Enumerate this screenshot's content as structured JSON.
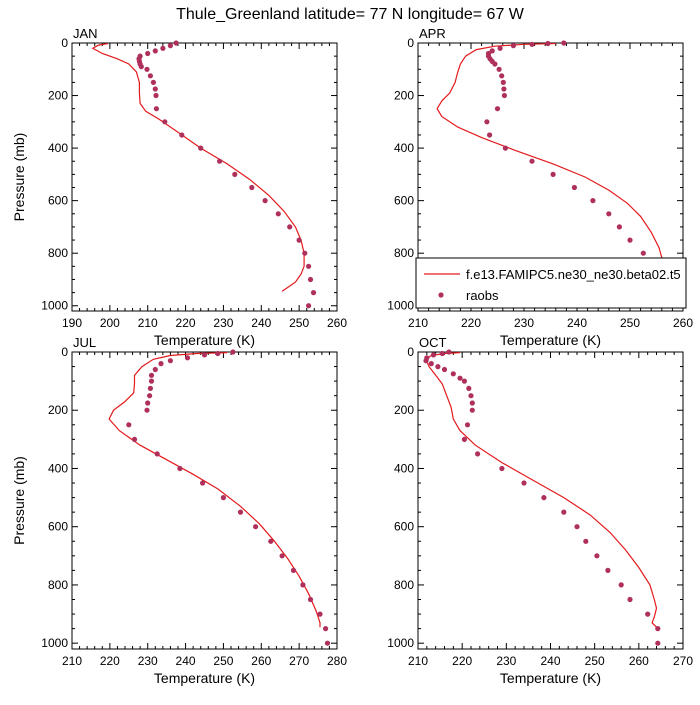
{
  "title": "Thule_Greenland  latitude= 77 N longitude= 67 W",
  "styles": {
    "model_color": "#e31a1c",
    "obs_color": "#b0305c"
  },
  "panels": [
    {
      "label": "JAN",
      "xlabel": "Temperature (K)",
      "ylabel": "Pressure (mb)",
      "xticks": [
        "190",
        "200",
        "210",
        "220",
        "230",
        "240",
        "250",
        "260"
      ],
      "yticks": [
        "0",
        "200",
        "400",
        "600",
        "800",
        "1000"
      ]
    },
    {
      "label": "APR",
      "xlabel": "Temperature (K)",
      "ylabel": "",
      "xticks": [
        "210",
        "220",
        "230",
        "240",
        "250",
        "260"
      ],
      "yticks": [
        "0",
        "200",
        "400",
        "600",
        "800",
        "1000"
      ],
      "legend": {
        "model": "f.e13.FAMIPC5.ne30_ne30.beta02.t5",
        "obs": "raobs"
      }
    },
    {
      "label": "JUL",
      "xlabel": "Temperature (K)",
      "ylabel": "Pressure (mb)",
      "xticks": [
        "210",
        "220",
        "230",
        "240",
        "250",
        "260",
        "270",
        "280"
      ],
      "yticks": [
        "0",
        "200",
        "400",
        "600",
        "800",
        "1000"
      ]
    },
    {
      "label": "OCT",
      "xlabel": "Temperature (K)",
      "ylabel": "",
      "xticks": [
        "210",
        "220",
        "230",
        "240",
        "250",
        "260",
        "270"
      ],
      "yticks": [
        "0",
        "200",
        "400",
        "600",
        "800",
        "1000"
      ]
    }
  ],
  "chart_data": [
    {
      "type": "line",
      "panel": "JAN",
      "xlim": [
        190,
        260
      ],
      "ylim": [
        1020,
        0
      ],
      "y_inverted": true,
      "series": [
        {
          "name": "f.e13.FAMIPC5.ne30_ne30.beta02.t5",
          "kind": "line",
          "points": [
            [
              199.5,
              2
            ],
            [
              197,
              8
            ],
            [
              195.5,
              20
            ],
            [
              198,
              40
            ],
            [
              202,
              60
            ],
            [
              205,
              80
            ],
            [
              207,
              110
            ],
            [
              207.8,
              150
            ],
            [
              207.8,
              190
            ],
            [
              208,
              230
            ],
            [
              209.5,
              260
            ],
            [
              213,
              290
            ],
            [
              218,
              340
            ],
            [
              224,
              400
            ],
            [
              231,
              460
            ],
            [
              237,
              520
            ],
            [
              242,
              580
            ],
            [
              246,
              640
            ],
            [
              249,
              700
            ],
            [
              250.5,
              750
            ],
            [
              251.3,
              800
            ],
            [
              251.3,
              850
            ],
            [
              250.5,
              880
            ],
            [
              249,
              910
            ],
            [
              247,
              930
            ],
            [
              245.5,
              945
            ]
          ]
        },
        {
          "name": "raobs",
          "kind": "scatter",
          "points": [
            [
              217.5,
              0
            ],
            [
              216,
              10
            ],
            [
              214,
              20
            ],
            [
              212,
              30
            ],
            [
              210,
              40
            ],
            [
              208,
              50
            ],
            [
              207.7,
              60
            ],
            [
              207.8,
              70
            ],
            [
              208,
              80
            ],
            [
              208.3,
              90
            ],
            [
              209.8,
              100
            ],
            [
              210.7,
              125
            ],
            [
              211.5,
              150
            ],
            [
              212,
              175
            ],
            [
              212.2,
              200
            ],
            [
              212.3,
              250
            ],
            [
              214.5,
              300
            ],
            [
              219,
              350
            ],
            [
              224,
              400
            ],
            [
              229,
              450
            ],
            [
              233,
              500
            ],
            [
              237.5,
              550
            ],
            [
              241,
              600
            ],
            [
              244.5,
              650
            ],
            [
              247.5,
              700
            ],
            [
              250,
              750
            ],
            [
              251.5,
              800
            ],
            [
              252.5,
              850
            ],
            [
              253,
              900
            ],
            [
              253.8,
              950
            ],
            [
              252.5,
              1000
            ]
          ]
        }
      ]
    },
    {
      "type": "line",
      "panel": "APR",
      "xlim": [
        210,
        260
      ],
      "ylim": [
        1020,
        0
      ],
      "y_inverted": true,
      "series": [
        {
          "name": "f.e13.FAMIPC5.ne30_ne30.beta02.t5",
          "kind": "line",
          "points": [
            [
              236,
              2
            ],
            [
              230,
              5
            ],
            [
              224.5,
              12
            ],
            [
              221,
              25
            ],
            [
              219,
              50
            ],
            [
              218,
              80
            ],
            [
              217.5,
              110
            ],
            [
              217,
              150
            ],
            [
              216,
              190
            ],
            [
              214.5,
              220
            ],
            [
              213.6,
              250
            ],
            [
              214.5,
              280
            ],
            [
              217.5,
              320
            ],
            [
              222,
              360
            ],
            [
              228.5,
              410
            ],
            [
              235.5,
              460
            ],
            [
              241.5,
              510
            ],
            [
              246,
              560
            ],
            [
              249.5,
              610
            ],
            [
              252,
              660
            ],
            [
              254,
              720
            ],
            [
              255.5,
              780
            ],
            [
              256.3,
              840
            ],
            [
              256,
              890
            ],
            [
              255.2,
              930
            ],
            [
              254.5,
              945
            ]
          ]
        },
        {
          "name": "raobs",
          "kind": "scatter",
          "points": [
            [
              237.5,
              0
            ],
            [
              234.5,
              2
            ],
            [
              231.5,
              5
            ],
            [
              228,
              10
            ],
            [
              225.5,
              20
            ],
            [
              224,
              30
            ],
            [
              223.3,
              40
            ],
            [
              223.3,
              50
            ],
            [
              223.6,
              60
            ],
            [
              224,
              70
            ],
            [
              224.5,
              80
            ],
            [
              225.3,
              100
            ],
            [
              225.8,
              125
            ],
            [
              226.1,
              150
            ],
            [
              226.2,
              175
            ],
            [
              226.3,
              200
            ],
            [
              225,
              250
            ],
            [
              223,
              300
            ],
            [
              223.5,
              350
            ],
            [
              226.5,
              400
            ],
            [
              231.5,
              450
            ],
            [
              235.5,
              500
            ],
            [
              239.5,
              550
            ],
            [
              243,
              600
            ],
            [
              246,
              650
            ],
            [
              248,
              700
            ],
            [
              250,
              750
            ],
            [
              252.5,
              800
            ],
            [
              254.5,
              850
            ],
            [
              256.5,
              900
            ],
            [
              257.2,
              950
            ],
            [
              257.2,
              1000
            ]
          ]
        }
      ]
    },
    {
      "type": "line",
      "panel": "JUL",
      "xlim": [
        210,
        280
      ],
      "ylim": [
        1020,
        0
      ],
      "y_inverted": true,
      "series": [
        {
          "name": "f.e13.FAMIPC5.ne30_ne30.beta02.t5",
          "kind": "line",
          "points": [
            [
              251,
              2
            ],
            [
              243,
              5
            ],
            [
              236,
              12
            ],
            [
              231.5,
              25
            ],
            [
              228.5,
              50
            ],
            [
              226.5,
              80
            ],
            [
              226.5,
              110
            ],
            [
              226.3,
              140
            ],
            [
              224,
              170
            ],
            [
              221,
              200
            ],
            [
              219.8,
              230
            ],
            [
              222.5,
              270
            ],
            [
              228,
              320
            ],
            [
              235,
              370
            ],
            [
              242,
              420
            ],
            [
              248.5,
              470
            ],
            [
              254.5,
              530
            ],
            [
              259.5,
              590
            ],
            [
              263.5,
              650
            ],
            [
              267,
              710
            ],
            [
              270,
              770
            ],
            [
              272.5,
              830
            ],
            [
              274.5,
              890
            ],
            [
              275.5,
              930
            ],
            [
              275.5,
              945
            ]
          ]
        },
        {
          "name": "raobs",
          "kind": "scatter",
          "points": [
            [
              252.5,
              0
            ],
            [
              248.5,
              5
            ],
            [
              245,
              10
            ],
            [
              240.5,
              20
            ],
            [
              236,
              30
            ],
            [
              233.5,
              40
            ],
            [
              232,
              60
            ],
            [
              231,
              80
            ],
            [
              231,
              100
            ],
            [
              230.7,
              125
            ],
            [
              230.5,
              150
            ],
            [
              230,
              175
            ],
            [
              229.8,
              200
            ],
            [
              225,
              250
            ],
            [
              226.5,
              300
            ],
            [
              232.5,
              350
            ],
            [
              238.5,
              400
            ],
            [
              244.5,
              450
            ],
            [
              250,
              500
            ],
            [
              254.5,
              550
            ],
            [
              258.5,
              600
            ],
            [
              262.5,
              650
            ],
            [
              265.5,
              700
            ],
            [
              268.5,
              750
            ],
            [
              271,
              800
            ],
            [
              273,
              850
            ],
            [
              275.5,
              900
            ],
            [
              277,
              950
            ],
            [
              277.5,
              1000
            ]
          ]
        }
      ]
    },
    {
      "type": "line",
      "panel": "OCT",
      "xlim": [
        210,
        270
      ],
      "ylim": [
        1020,
        0
      ],
      "y_inverted": true,
      "series": [
        {
          "name": "f.e13.FAMIPC5.ne30_ne30.beta02.t5",
          "kind": "line",
          "points": [
            [
              219.5,
              2
            ],
            [
              216,
              5
            ],
            [
              213,
              12
            ],
            [
              211.8,
              25
            ],
            [
              212.5,
              50
            ],
            [
              214,
              80
            ],
            [
              215.5,
              110
            ],
            [
              216.5,
              150
            ],
            [
              217.5,
              190
            ],
            [
              218,
              230
            ],
            [
              219.5,
              270
            ],
            [
              223,
              320
            ],
            [
              229,
              380
            ],
            [
              236,
              440
            ],
            [
              243,
              500
            ],
            [
              249,
              560
            ],
            [
              253.5,
              620
            ],
            [
              257,
              680
            ],
            [
              260,
              740
            ],
            [
              262.5,
              800
            ],
            [
              263.5,
              850
            ],
            [
              264,
              880
            ],
            [
              263.5,
              910
            ],
            [
              263,
              930
            ],
            [
              264,
              945
            ]
          ]
        },
        {
          "name": "raobs",
          "kind": "scatter",
          "points": [
            [
              217,
              0
            ],
            [
              215.5,
              5
            ],
            [
              213.5,
              10
            ],
            [
              212,
              20
            ],
            [
              211.8,
              30
            ],
            [
              213,
              40
            ],
            [
              214.5,
              50
            ],
            [
              216,
              60
            ],
            [
              218,
              75
            ],
            [
              219.5,
              90
            ],
            [
              220.5,
              100
            ],
            [
              221.5,
              125
            ],
            [
              222,
              150
            ],
            [
              222.3,
              175
            ],
            [
              222.3,
              200
            ],
            [
              221.2,
              250
            ],
            [
              220.5,
              300
            ],
            [
              223.5,
              350
            ],
            [
              229,
              400
            ],
            [
              234,
              450
            ],
            [
              238.5,
              500
            ],
            [
              243,
              550
            ],
            [
              246,
              600
            ],
            [
              248,
              650
            ],
            [
              250.5,
              700
            ],
            [
              253,
              750
            ],
            [
              256,
              800
            ],
            [
              258,
              850
            ],
            [
              262,
              900
            ],
            [
              264.3,
              950
            ],
            [
              264.3,
              1000
            ]
          ]
        }
      ]
    }
  ]
}
